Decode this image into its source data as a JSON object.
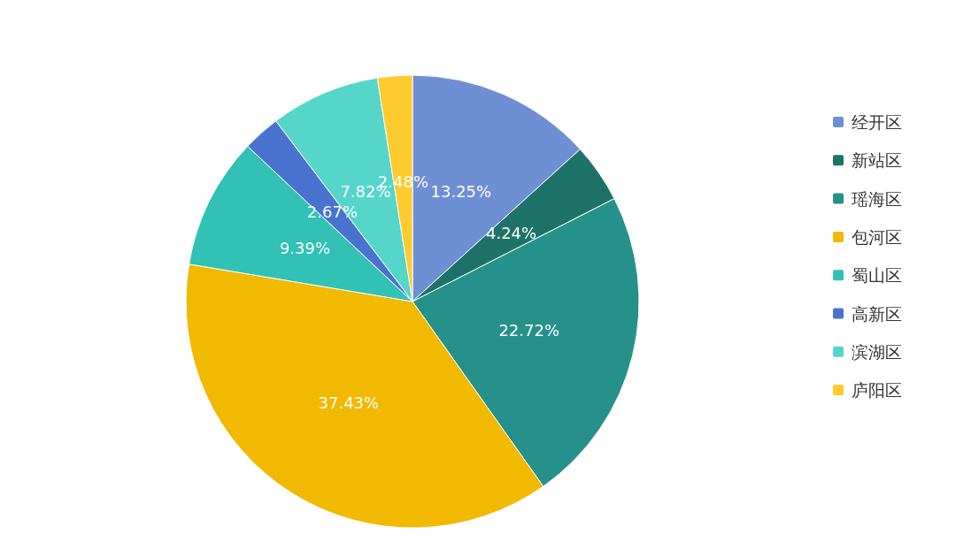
{
  "chart_data": {
    "type": "pie",
    "categories": [
      "经开区",
      "新站区",
      "瑶海区",
      "包河区",
      "蜀山区",
      "高新区",
      "滨湖区",
      "庐阳区"
    ],
    "values": [
      13.25,
      4.24,
      22.72,
      37.43,
      9.39,
      2.67,
      7.82,
      2.48
    ],
    "colors": [
      "#6f8fd4",
      "#1d7369",
      "#25918a",
      "#f1b900",
      "#31c1b5",
      "#4a72cf",
      "#56d5c9",
      "#fdcb2d"
    ],
    "value_labels": [
      "13.25%",
      "4.24%",
      "22.72%",
      "37.43%",
      "9.39%",
      "2.67%",
      "7.82%",
      "2.48%"
    ],
    "legend": "right"
  }
}
